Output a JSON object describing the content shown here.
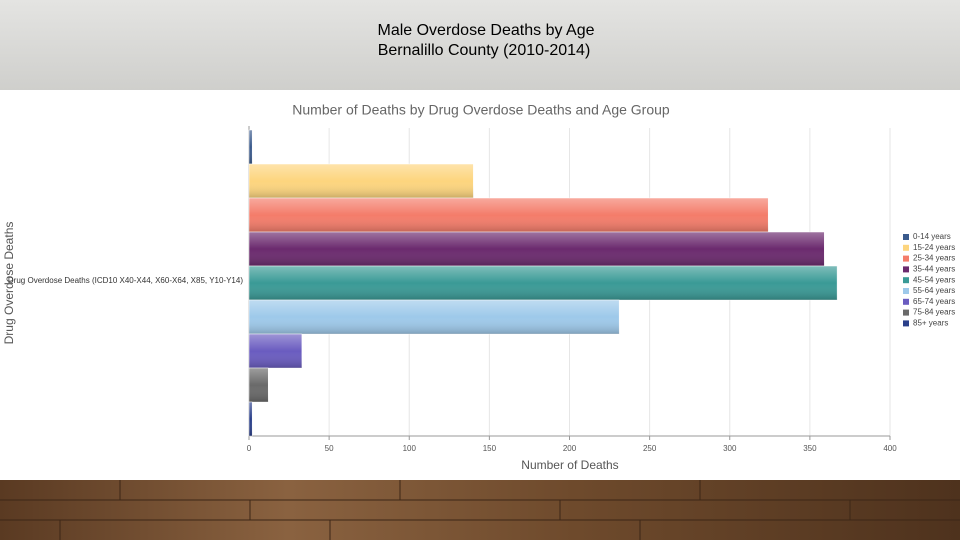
{
  "slide_title": [
    "Male Overdose Deaths by Age",
    "Bernalillo County (2010-2014)"
  ],
  "chart_data": {
    "type": "hbar",
    "title": "Number of Deaths by Drug Overdose Deaths and Age Group",
    "x_label": "Number of Deaths",
    "y_label": "Drug Overdose Deaths",
    "categories": [
      "Drug Overdose Deaths (ICD10 X40-X44, X60-X64, X85, Y10-Y14)"
    ],
    "series": [
      {
        "name": "0-14 years",
        "color": "#3a5a8c",
        "values": [
          2
        ]
      },
      {
        "name": "15-24 years",
        "color": "#fdd57e",
        "values": [
          140
        ]
      },
      {
        "name": "25-34 years",
        "color": "#f47c6a",
        "values": [
          324
        ]
      },
      {
        "name": "35-44 years",
        "color": "#6b2a6e",
        "values": [
          359
        ]
      },
      {
        "name": "45-54 years",
        "color": "#3a9a96",
        "values": [
          367
        ]
      },
      {
        "name": "55-64 years",
        "color": "#9ec9ea",
        "values": [
          231
        ]
      },
      {
        "name": "65-74 years",
        "color": "#6a5cc0",
        "values": [
          33
        ]
      },
      {
        "name": "75-84 years",
        "color": "#6a6a6a",
        "values": [
          12
        ]
      },
      {
        "name": "85+ years",
        "color": "#2a3f8a",
        "values": [
          2
        ]
      }
    ],
    "xlim": [
      0,
      400
    ],
    "xticks": [
      0,
      50,
      100,
      150,
      200,
      250,
      300,
      350,
      400
    ],
    "grid": true,
    "legend": "right"
  }
}
